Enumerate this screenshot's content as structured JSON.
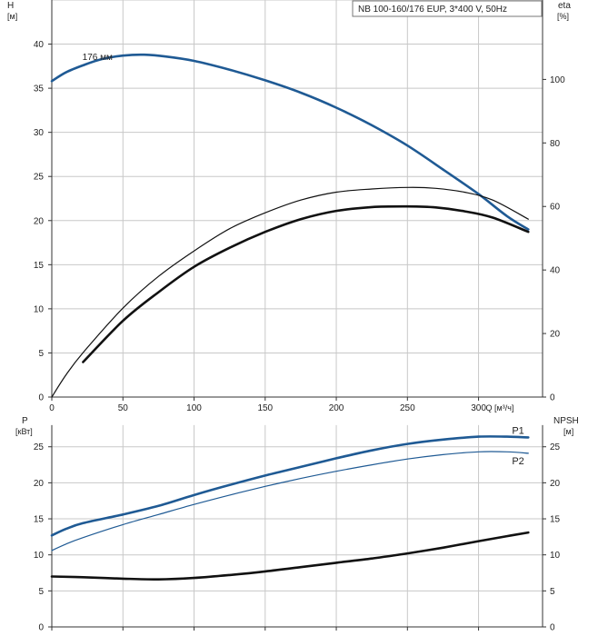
{
  "legend_box": "NB 100-160/176 EUP, 3*400 V, 50Hz",
  "colors": {
    "blue": "#1f5a94",
    "black": "#111111",
    "grid": "#c8c8c8"
  },
  "chart_data": [
    {
      "type": "line",
      "panel": "top",
      "left_axis": {
        "label_line1": "H",
        "label_line2": "[м]",
        "ticks": [
          "0",
          "5",
          "10",
          "15",
          "20",
          "25",
          "30",
          "35",
          "40"
        ],
        "ylim": [
          0,
          45
        ]
      },
      "right_axis": {
        "label_line1": "eta",
        "label_line2": "[%]",
        "ticks": [
          "0",
          "20",
          "40",
          "60",
          "80",
          "100"
        ],
        "ylim": [
          0,
          125
        ]
      },
      "x_axis": {
        "ticks": [
          "0",
          "50",
          "100",
          "150",
          "200",
          "250",
          "300"
        ],
        "unit": "Q [м³/ч]",
        "xlim": [
          0,
          345
        ]
      },
      "grid": true,
      "annotations": [
        {
          "text": "176 мм"
        }
      ],
      "series": [
        {
          "id": "head",
          "axis": "left",
          "style": "blue-thick",
          "x": [
            0,
            10,
            22,
            35,
            50,
            65,
            80,
            100,
            125,
            150,
            175,
            200,
            225,
            250,
            275,
            300,
            320,
            335
          ],
          "y": [
            35.8,
            36.8,
            37.6,
            38.3,
            38.7,
            38.8,
            38.6,
            38.1,
            37.1,
            35.9,
            34.5,
            32.8,
            30.8,
            28.5,
            25.8,
            23.0,
            20.5,
            19.0
          ]
        },
        {
          "id": "eta-thin",
          "axis": "right",
          "style": "black-thin",
          "x": [
            0,
            10,
            22,
            50,
            75,
            100,
            125,
            150,
            175,
            200,
            225,
            250,
            270,
            290,
            310,
            335
          ],
          "y": [
            0,
            7,
            14,
            28,
            38,
            46,
            53,
            58,
            62,
            64.5,
            65.5,
            66,
            65.7,
            64.5,
            62,
            56
          ]
        },
        {
          "id": "eta-thick",
          "axis": "right",
          "style": "black-thick",
          "x": [
            22,
            50,
            75,
            100,
            125,
            150,
            175,
            200,
            225,
            250,
            270,
            290,
            310,
            335
          ],
          "y": [
            11,
            24,
            33,
            41,
            47,
            52,
            56,
            58.6,
            59.8,
            60,
            59.7,
            58.5,
            56.5,
            52
          ]
        }
      ]
    },
    {
      "type": "line",
      "panel": "bottom",
      "left_axis": {
        "label_line1": "P",
        "label_line2": "[кВт]",
        "ticks": [
          "0",
          "5",
          "10",
          "15",
          "20",
          "25"
        ],
        "ylim": [
          0,
          29
        ]
      },
      "right_axis": {
        "label_line1": "NPSH",
        "label_line2": "[м]",
        "ticks": [
          "0",
          "5",
          "10",
          "15",
          "20",
          "25"
        ],
        "ylim": [
          0,
          29
        ]
      },
      "x_axis": {
        "xlim": [
          0,
          345
        ]
      },
      "grid": true,
      "series": [
        {
          "id": "P1",
          "name": "P1",
          "axis": "left",
          "style": "blue-thick",
          "x": [
            0,
            10,
            22,
            50,
            75,
            100,
            125,
            150,
            175,
            200,
            225,
            250,
            275,
            300,
            320,
            335
          ],
          "y": [
            12.7,
            13.6,
            14.4,
            15.6,
            16.8,
            18.3,
            19.7,
            21.0,
            22.2,
            23.4,
            24.5,
            25.4,
            26.0,
            26.4,
            26.4,
            26.3
          ]
        },
        {
          "id": "P2",
          "name": "P2",
          "axis": "left",
          "style": "blue-thin",
          "x": [
            0,
            10,
            22,
            50,
            75,
            100,
            125,
            150,
            175,
            200,
            225,
            250,
            275,
            300,
            320,
            335
          ],
          "y": [
            10.6,
            11.5,
            12.4,
            14.2,
            15.6,
            17.0,
            18.3,
            19.5,
            20.6,
            21.6,
            22.5,
            23.3,
            23.9,
            24.3,
            24.3,
            24.1
          ]
        },
        {
          "id": "NPSH",
          "axis": "right",
          "style": "black-thick",
          "x": [
            0,
            22,
            50,
            75,
            100,
            125,
            150,
            175,
            200,
            225,
            250,
            275,
            300,
            320,
            335
          ],
          "y": [
            7.0,
            6.9,
            6.7,
            6.6,
            6.8,
            7.2,
            7.7,
            8.3,
            8.9,
            9.5,
            10.2,
            11.0,
            11.9,
            12.6,
            13.1
          ]
        }
      ]
    }
  ]
}
